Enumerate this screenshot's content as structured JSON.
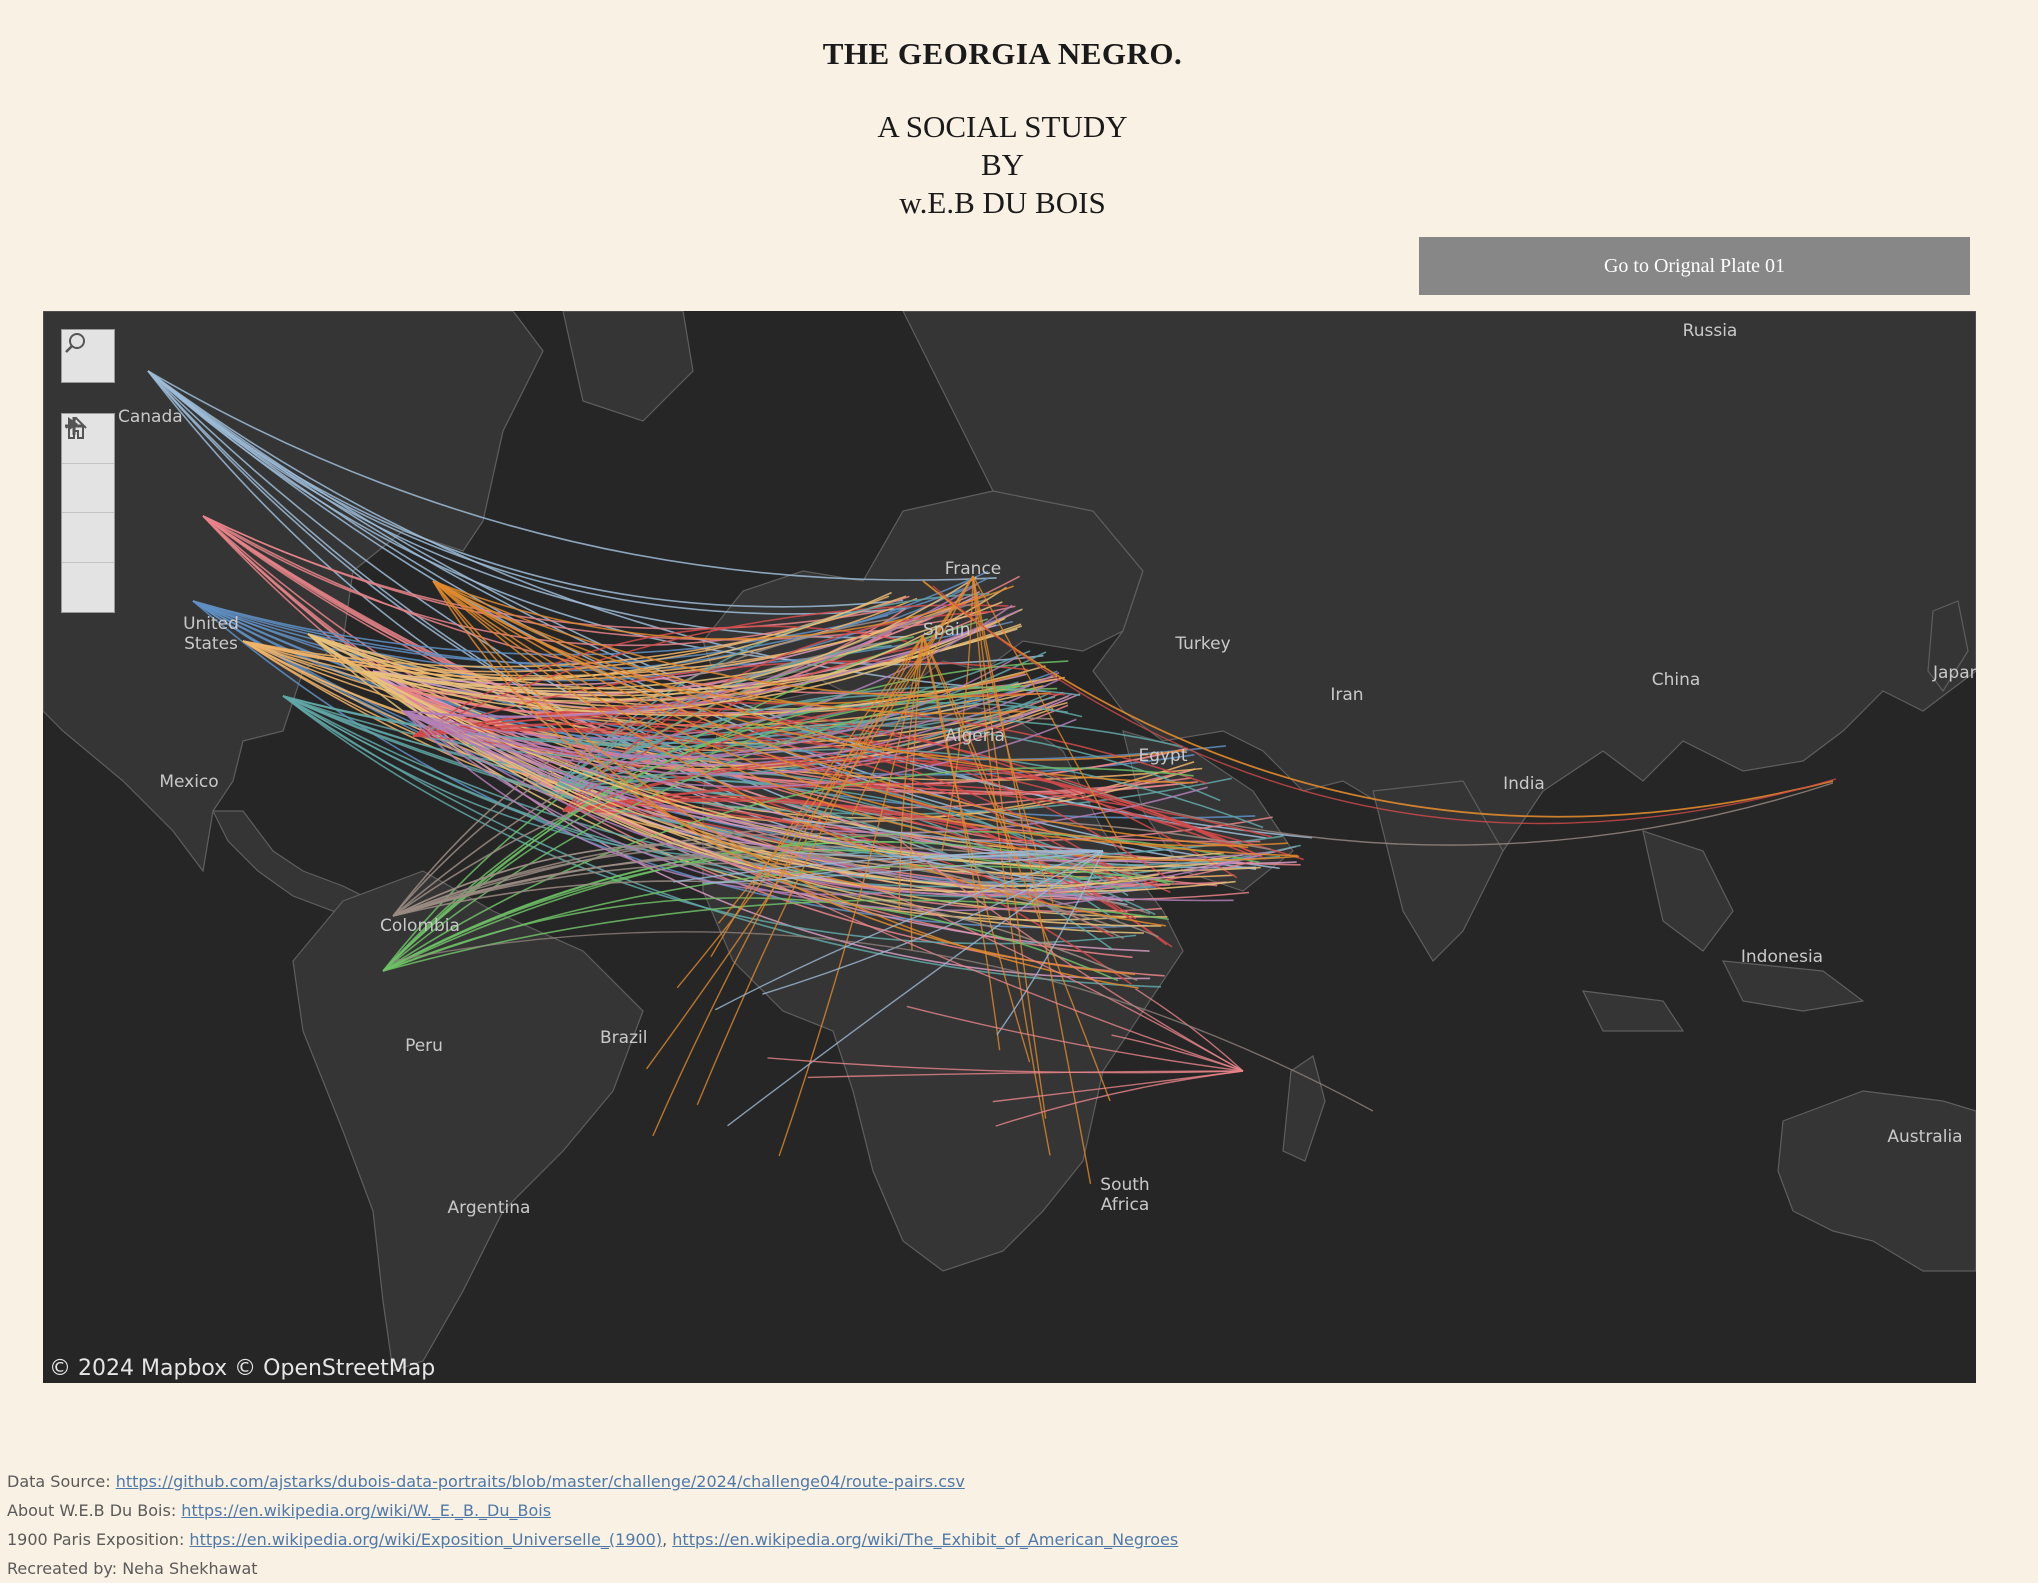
{
  "header": {
    "title": "THE GEORGIA NEGRO.",
    "subtitle_lines": [
      "A SOCIAL STUDY",
      "BY",
      "w.E.B DU BOIS"
    ]
  },
  "plate_button": {
    "label": "Go to Orignal Plate 01"
  },
  "map": {
    "attribution": "© 2024 Mapbox  © OpenStreetMap",
    "controls": [
      "search-icon",
      "zoom-in-icon",
      "zoom-out-icon",
      "home-icon",
      "play-icon"
    ],
    "labels": {
      "canada": "Canada",
      "us_1": "United",
      "us_2": "States",
      "mexico": "Mexico",
      "colombia": "Colombia",
      "peru": "Peru",
      "brazil": "Brazil",
      "argentina": "Argentina",
      "france": "France",
      "spain": "Spain",
      "algeria": "Algeria",
      "egypt": "Egypt",
      "turkey": "Turkey",
      "iran": "Iran",
      "india": "India",
      "china": "China",
      "japan": "Japan",
      "russia": "Russia",
      "indonesia": "Indonesia",
      "australia": "Australia",
      "sa_1": "South",
      "sa_2": "Africa"
    },
    "colors": {
      "background": "#262626",
      "land": "#353535",
      "border": "#5e5e5e",
      "route_palette": [
        "#9dbcd8",
        "#e8848a",
        "#5f8fc3",
        "#e9c27a",
        "#d59ac2",
        "#f0b46a",
        "#62a7a7",
        "#d24a4a",
        "#6fbf66",
        "#e0892d",
        "#9b8c84",
        "#b07fb8"
      ]
    }
  },
  "footer": {
    "data_source_label": "Data Source: ",
    "data_source_url": "https://github.com/ajstarks/dubois-data-portraits/blob/master/challenge/2024/challenge04/route-pairs.csv",
    "about_label": "About W.E.B Du Bois: ",
    "about_url": "https://en.wikipedia.org/wiki/W._E._B._Du_Bois",
    "expo_label": "1900 Paris Exposition: ",
    "expo_url_1": "https://en.wikipedia.org/wiki/Exposition_Universelle_(1900)",
    "expo_sep": ", ",
    "expo_url_2": "https://en.wikipedia.org/wiki/The_Exhibit_of_American_Negroes",
    "credit": "Recreated by: Neha Shekhawat"
  }
}
